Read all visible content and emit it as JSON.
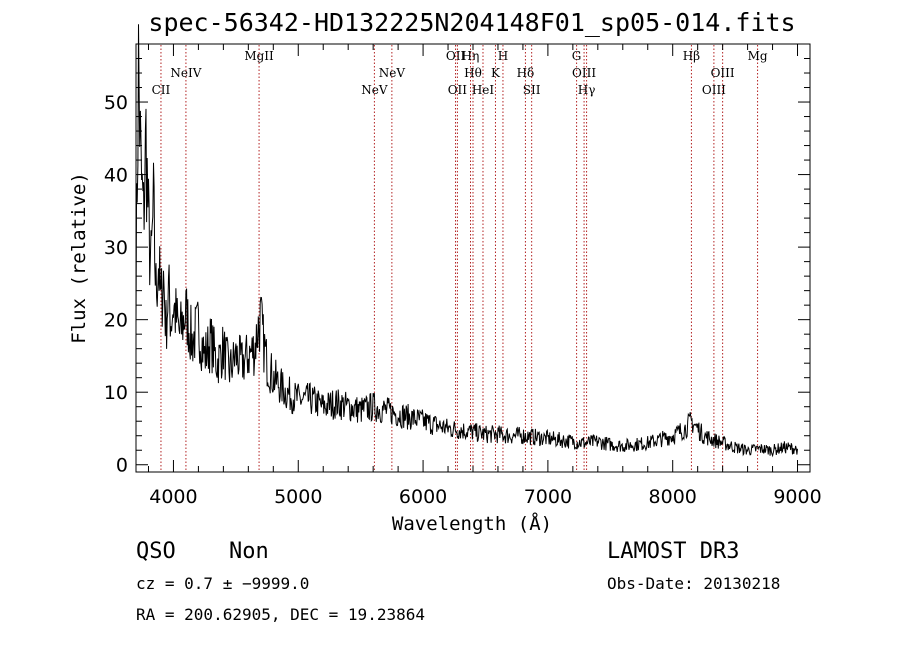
{
  "chart_data": {
    "type": "line",
    "title": "spec-56342-HD132225N204148F01_sp05-014.fits",
    "xlabel": "Wavelength (Å)",
    "ylabel": "Flux (relative)",
    "xlim": [
      3700,
      9100
    ],
    "ylim": [
      -1,
      58
    ],
    "xticks": [
      4000,
      5000,
      6000,
      7000,
      8000,
      9000
    ],
    "yticks": [
      0,
      10,
      20,
      30,
      40,
      50
    ],
    "grid": false,
    "line_color": "#000000",
    "marker_color": "#b22222",
    "series": [
      {
        "x": [
          3700,
          3720,
          3740,
          3760,
          3780,
          3800,
          3820,
          3840,
          3860,
          3880,
          3900,
          3920,
          3940,
          3960,
          3980,
          4000,
          4050,
          4100,
          4150,
          4200,
          4250,
          4300,
          4350,
          4400,
          4450,
          4500,
          4550,
          4600,
          4650,
          4680,
          4700,
          4720,
          4750,
          4800,
          4850,
          4900,
          5000,
          5100,
          5200,
          5300,
          5400,
          5500,
          5600,
          5700,
          5800,
          5900,
          6000,
          6100,
          6200,
          6300,
          6400,
          6500,
          6600,
          6700,
          6800,
          6900,
          7000,
          7100,
          7200,
          7300,
          7400,
          7500,
          7600,
          7700,
          7800,
          7900,
          8000,
          8100,
          8150,
          8200,
          8250,
          8300,
          8400,
          8500,
          8600,
          8700,
          8800,
          8900,
          9000
        ],
        "y": [
          25,
          55,
          40,
          34,
          45,
          33,
          27,
          35,
          24,
          28,
          22,
          26,
          19,
          24,
          20,
          22,
          18,
          21,
          17,
          19,
          15,
          17,
          14,
          16,
          13,
          15,
          14,
          15,
          16,
          19,
          20,
          17,
          14,
          12,
          11,
          10,
          9,
          9,
          8,
          8.5,
          8,
          7.5,
          8,
          7.5,
          7,
          6.5,
          6,
          5.5,
          5,
          4.8,
          4.5,
          4.2,
          4.2,
          4,
          4,
          3.8,
          3.6,
          3.4,
          3.2,
          3,
          3.2,
          2.8,
          2.6,
          2.8,
          3,
          3.5,
          4,
          5,
          6,
          5,
          4,
          3.6,
          3,
          2.4,
          2,
          2.2,
          2,
          2.4,
          2.2
        ]
      }
    ],
    "lines": [
      {
        "wl": 3900,
        "label": "CII",
        "row": 2
      },
      {
        "wl": 4100,
        "label": "NeIV",
        "row": 1
      },
      {
        "wl": 4686,
        "label": "MgII",
        "row": 0
      },
      {
        "wl": 5610,
        "label": "NeV",
        "row": 2
      },
      {
        "wl": 5750,
        "label": "NeV",
        "row": 1
      },
      {
        "wl": 6260,
        "label": "OII",
        "row": 0
      },
      {
        "wl": 6275,
        "label": "OII",
        "row": 2
      },
      {
        "wl": 6380,
        "label": "Hη",
        "row": 0
      },
      {
        "wl": 6400,
        "label": "Hθ",
        "row": 1
      },
      {
        "wl": 6480,
        "label": "HeI",
        "row": 2
      },
      {
        "wl": 6580,
        "label": "K",
        "row": 1
      },
      {
        "wl": 6640,
        "label": "H",
        "row": 0
      },
      {
        "wl": 6820,
        "label": "Hδ",
        "row": 1
      },
      {
        "wl": 6870,
        "label": "SII",
        "row": 2
      },
      {
        "wl": 7230,
        "label": "G",
        "row": 0
      },
      {
        "wl": 7290,
        "label": "OIII",
        "row": 1
      },
      {
        "wl": 7310,
        "label": "Hγ",
        "row": 2
      },
      {
        "wl": 8150,
        "label": "Hβ",
        "row": 0
      },
      {
        "wl": 8330,
        "label": "OIII",
        "row": 2
      },
      {
        "wl": 8400,
        "label": "OIII",
        "row": 1
      },
      {
        "wl": 8680,
        "label": "Mg",
        "row": 0
      }
    ]
  },
  "info": {
    "class_label": "QSO",
    "subclass_label": "Non",
    "survey_label": "LAMOST DR3",
    "cz_text": "cz = 0.7 ± −9999.0",
    "obs_date_text": "Obs-Date: 20130218",
    "radec_text": "RA = 200.62905, DEC =  19.23864"
  }
}
